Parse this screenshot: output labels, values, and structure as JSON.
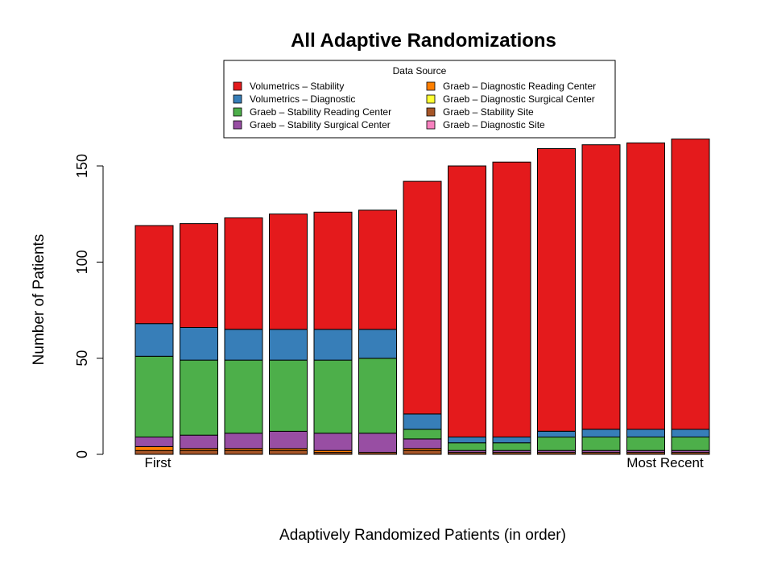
{
  "chart_data": {
    "type": "bar",
    "stacked": true,
    "title": "All Adaptive Randomizations",
    "xlabel": "Adaptively Randomized Patients (in order)",
    "ylabel": "Number of Patients",
    "ylim": [
      0,
      160
    ],
    "yticks": [
      0,
      50,
      100,
      150
    ],
    "category_labels": {
      "first": "First",
      "last": "Most Recent"
    },
    "legend": {
      "title": "Data Source",
      "placement": "top"
    },
    "categories": [
      "1",
      "2",
      "3",
      "4",
      "5",
      "6",
      "7",
      "8",
      "9",
      "10",
      "11",
      "12",
      "13"
    ],
    "series": [
      {
        "name": "Graeb – Stability Site",
        "color": "#a65628",
        "values": [
          2,
          2,
          2,
          2,
          1,
          1,
          2,
          1,
          1,
          1,
          1,
          1,
          1
        ]
      },
      {
        "name": "Graeb – Diagnostic Reading Center",
        "color": "#ff7f00",
        "values": [
          2,
          1,
          1,
          1,
          1,
          0,
          1,
          0,
          0,
          0,
          0,
          0,
          0
        ]
      },
      {
        "name": "Graeb – Diagnostic Surgical Center",
        "color": "#ffff33",
        "values": [
          0,
          0,
          0,
          0,
          0,
          0,
          0,
          0,
          0,
          0,
          0,
          0,
          0
        ]
      },
      {
        "name": "Graeb – Diagnostic Site",
        "color": "#f781bf",
        "values": [
          0,
          0,
          0,
          0,
          0,
          0,
          0,
          0,
          0,
          0,
          0,
          0,
          0
        ]
      },
      {
        "name": "Graeb – Stability Surgical Center",
        "color": "#984ea3",
        "values": [
          5,
          7,
          8,
          9,
          9,
          10,
          5,
          1,
          1,
          1,
          1,
          1,
          1
        ]
      },
      {
        "name": "Graeb – Stability Reading Center",
        "color": "#4daf4a",
        "values": [
          42,
          39,
          38,
          37,
          38,
          39,
          5,
          4,
          4,
          7,
          7,
          7,
          7
        ]
      },
      {
        "name": "Volumetrics – Diagnostic",
        "color": "#377eb8",
        "values": [
          17,
          17,
          16,
          16,
          16,
          15,
          8,
          3,
          3,
          3,
          4,
          4,
          4
        ]
      },
      {
        "name": "Volumetrics – Stability",
        "color": "#e41a1c",
        "values": [
          51,
          54,
          58,
          60,
          61,
          62,
          121,
          141,
          143,
          147,
          148,
          149,
          151
        ]
      }
    ],
    "legend_order": [
      "Volumetrics – Stability",
      "Volumetrics – Diagnostic",
      "Graeb – Stability Reading Center",
      "Graeb – Stability Surgical Center",
      "Graeb – Diagnostic Reading Center",
      "Graeb – Diagnostic Surgical Center",
      "Graeb – Stability Site",
      "Graeb – Diagnostic Site"
    ]
  }
}
